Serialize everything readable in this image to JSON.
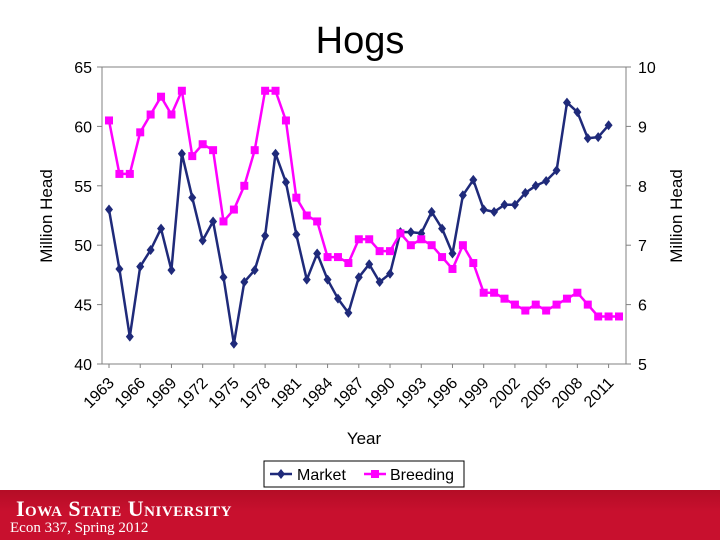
{
  "chart_data": {
    "type": "line",
    "title": "Hogs",
    "xlabel": "Year",
    "ylabel_left": "Million Head",
    "ylabel_right": "Million Head",
    "ylim_left": [
      40,
      65
    ],
    "ylim_right": [
      5,
      10
    ],
    "yticks_left": [
      "40",
      "45",
      "50",
      "55",
      "60",
      "65"
    ],
    "yticks_right": [
      "5",
      "6",
      "7",
      "8",
      "9",
      "10"
    ],
    "xtick_labels": [
      "1963",
      "1966",
      "1969",
      "1972",
      "1975",
      "1978",
      "1981",
      "1984",
      "1987",
      "1990",
      "1993",
      "1996",
      "1999",
      "2002",
      "2005",
      "2008",
      "2011"
    ],
    "x": [
      1963,
      1964,
      1965,
      1966,
      1967,
      1968,
      1969,
      1970,
      1971,
      1972,
      1973,
      1974,
      1975,
      1976,
      1977,
      1978,
      1979,
      1980,
      1981,
      1982,
      1983,
      1984,
      1985,
      1986,
      1987,
      1988,
      1989,
      1990,
      1991,
      1992,
      1993,
      1994,
      1995,
      1996,
      1997,
      1998,
      1999,
      2000,
      2001,
      2002,
      2003,
      2004,
      2005,
      2006,
      2007,
      2008,
      2009,
      2010,
      2011,
      2012
    ],
    "legend_position": "bottom",
    "series": [
      {
        "name": "Market",
        "axis": "left",
        "color": "#1f2a7a",
        "marker": "diamond",
        "values": [
          53.0,
          48.0,
          42.3,
          48.2,
          49.6,
          51.4,
          47.9,
          57.7,
          54.0,
          50.4,
          52.0,
          47.3,
          41.7,
          46.9,
          47.9,
          50.8,
          57.7,
          55.3,
          50.9,
          47.1,
          49.3,
          47.1,
          45.5,
          44.3,
          47.3,
          48.4,
          46.9,
          47.6,
          51.1,
          51.1,
          51.0,
          52.8,
          51.4,
          49.3,
          54.2,
          55.5,
          53.0,
          52.8,
          53.4,
          53.4,
          54.4,
          55.0,
          55.4,
          56.3,
          62.0,
          61.2,
          59.0,
          59.1,
          60.1,
          null
        ]
      },
      {
        "name": "Breeding",
        "axis": "right",
        "color": "#ff00ff",
        "marker": "square",
        "values": [
          9.1,
          8.2,
          8.2,
          8.9,
          9.2,
          9.5,
          9.2,
          9.6,
          8.5,
          8.7,
          8.6,
          7.4,
          7.6,
          8.0,
          8.6,
          9.6,
          9.6,
          9.1,
          7.8,
          7.5,
          7.4,
          6.8,
          6.8,
          6.7,
          7.1,
          7.1,
          6.9,
          6.9,
          7.2,
          7.0,
          7.1,
          7.0,
          6.8,
          6.6,
          7.0,
          6.7,
          6.2,
          6.2,
          6.1,
          6.0,
          5.9,
          6.0,
          5.9,
          6.0,
          6.1,
          6.2,
          6.0,
          5.8,
          5.8,
          5.8
        ]
      }
    ]
  },
  "footer": {
    "university": "Iowa State University",
    "course": "Econ 337, Spring 2012",
    "bar_color": "#c8102e"
  }
}
